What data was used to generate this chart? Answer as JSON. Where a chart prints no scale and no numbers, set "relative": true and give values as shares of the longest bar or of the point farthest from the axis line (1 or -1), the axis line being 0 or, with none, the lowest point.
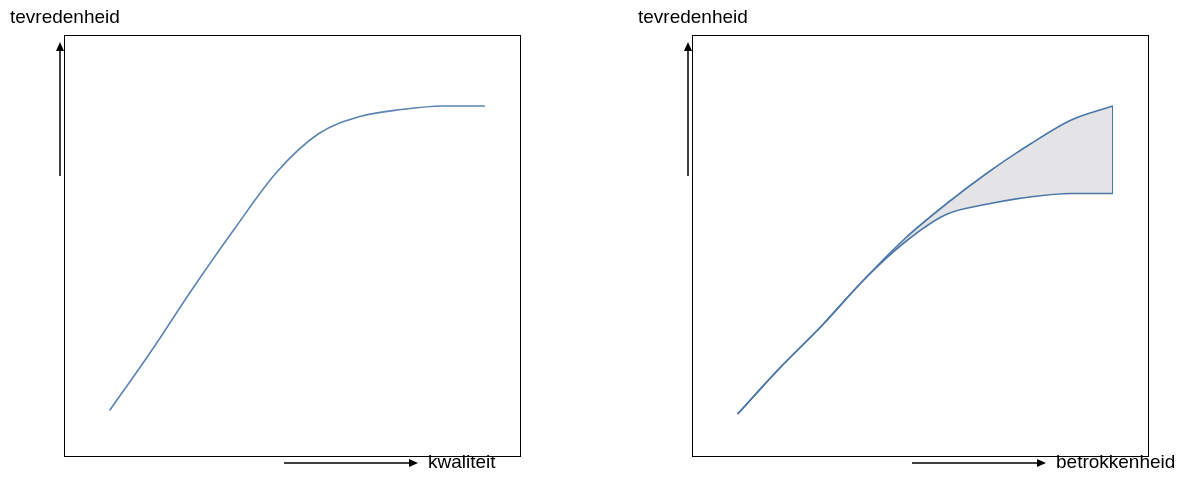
{
  "chart_data": [
    {
      "type": "line",
      "relative": true,
      "xlabel": "kwaliteit",
      "ylabel": "tevredenheid",
      "marker": "none",
      "categories": [
        null,
        null,
        null,
        null,
        null,
        null,
        null,
        null,
        null,
        null
      ],
      "series": [
        {
          "color": "#5b84b1",
          "values": [
            0.13,
            0.3,
            0.48,
            0.65,
            0.81,
            0.92,
            0.97,
            0.99,
            1,
            1
          ]
        }
      ]
    },
    {
      "type": "line",
      "relative": true,
      "xlabel": "betrokkenheid",
      "ylabel": "tevredenheid",
      "marker": "none",
      "categories": [
        null,
        null,
        null,
        null,
        null,
        null,
        null,
        null,
        null,
        null
      ],
      "series": [
        {
          "color": "#4a76a8",
          "values": [
            0.12,
            0.25,
            0.37,
            0.5,
            0.61,
            0.69,
            0.72,
            0.74,
            0.75,
            0.75
          ]
        },
        {
          "type": "area",
          "color": "#4a76a8",
          "values": [
            0.12,
            0.25,
            0.37,
            0.5,
            0.62,
            0.72,
            0.81,
            0.89,
            0.96,
            1
          ]
        }
      ]
    }
  ]
}
